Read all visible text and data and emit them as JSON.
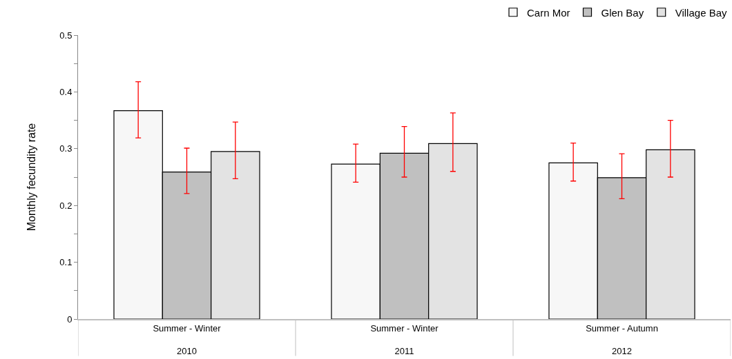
{
  "chart_data": {
    "type": "bar",
    "ylabel": "Monthly fecundity rate",
    "categories": [
      "Summer - Winter\n2010",
      "Summer - Winter\n2011",
      "Summer - Autumn\n2012"
    ],
    "series": [
      {
        "name": "Carn Mor",
        "color": "#f7f7f7",
        "values": [
          0.367,
          0.273,
          0.275
        ],
        "errors": [
          [
            0.319,
            0.418
          ],
          [
            0.241,
            0.308
          ],
          [
            0.243,
            0.31
          ]
        ]
      },
      {
        "name": "Glen Bay",
        "color": "#c0c0c0",
        "values": [
          0.259,
          0.292,
          0.249
        ],
        "errors": [
          [
            0.221,
            0.301
          ],
          [
            0.25,
            0.339
          ],
          [
            0.212,
            0.291
          ]
        ]
      },
      {
        "name": "Village Bay",
        "color": "#e3e3e3",
        "values": [
          0.295,
          0.309,
          0.298
        ],
        "errors": [
          [
            0.247,
            0.347
          ],
          [
            0.26,
            0.363
          ],
          [
            0.25,
            0.35
          ]
        ]
      }
    ],
    "ylim": [
      0,
      0.5
    ],
    "yticks": [
      0,
      {
        "value": 0.05,
        "label": null
      },
      0.1,
      {
        "value": 0.15,
        "label": null
      },
      0.2,
      {
        "value": 0.25,
        "label": null
      },
      0.3,
      {
        "value": 0.35,
        "label": null
      },
      0.4,
      {
        "value": 0.45,
        "label": null
      },
      0.5
    ],
    "grid": false,
    "legend": "top right"
  }
}
